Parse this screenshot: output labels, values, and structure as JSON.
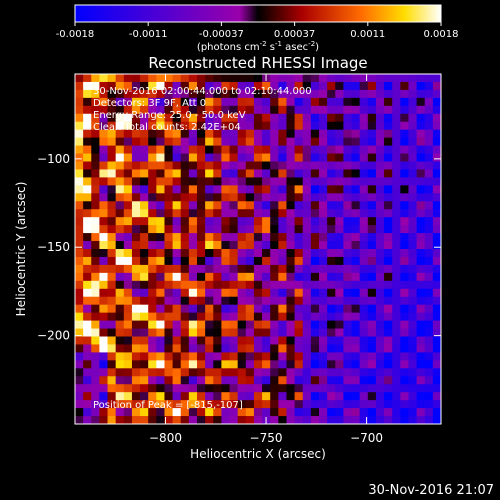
{
  "chart_data": {
    "type": "heatmap",
    "title": "Reconstructed RHESSI Image",
    "xlabel": "Heliocentric X (arcsec)",
    "ylabel": "Heliocentric Y (arcsec)",
    "xlim": [
      -845,
      -663
    ],
    "ylim": [
      -250,
      -52
    ],
    "x_ticks": [
      -800,
      -750,
      -700
    ],
    "y_ticks": [
      -100,
      -150,
      -200
    ],
    "annotations": [
      "30-Nov-2016 02:00:44.000 to 02:10:44.000",
      "Detectors: 3F 9F, Att 0",
      "Energy Range: 25.0 - 50.0 keV",
      "Clean   Total counts: 2.42E+04"
    ],
    "peak_label": "Position of Peak = [-815,-107]",
    "peak": [
      -815,
      -107
    ],
    "colorbar": {
      "range": [
        -0.0018,
        0.0018
      ],
      "tick_labels": [
        "-0.0018",
        "-0.0011",
        "-0.00037",
        "0.00037",
        "0.0011",
        "0.0018"
      ],
      "units_text": "(photons cm",
      "units_sup1": "-2",
      "units_mid": " s",
      "units_sup2": "-1",
      "units_end": " asec",
      "units_sup3": "-2",
      "units_close": ")"
    },
    "grid_shape": [
      45,
      44
    ],
    "value_fraction_note": "",
    "timestamp": "30-Nov-2016 21:07"
  }
}
